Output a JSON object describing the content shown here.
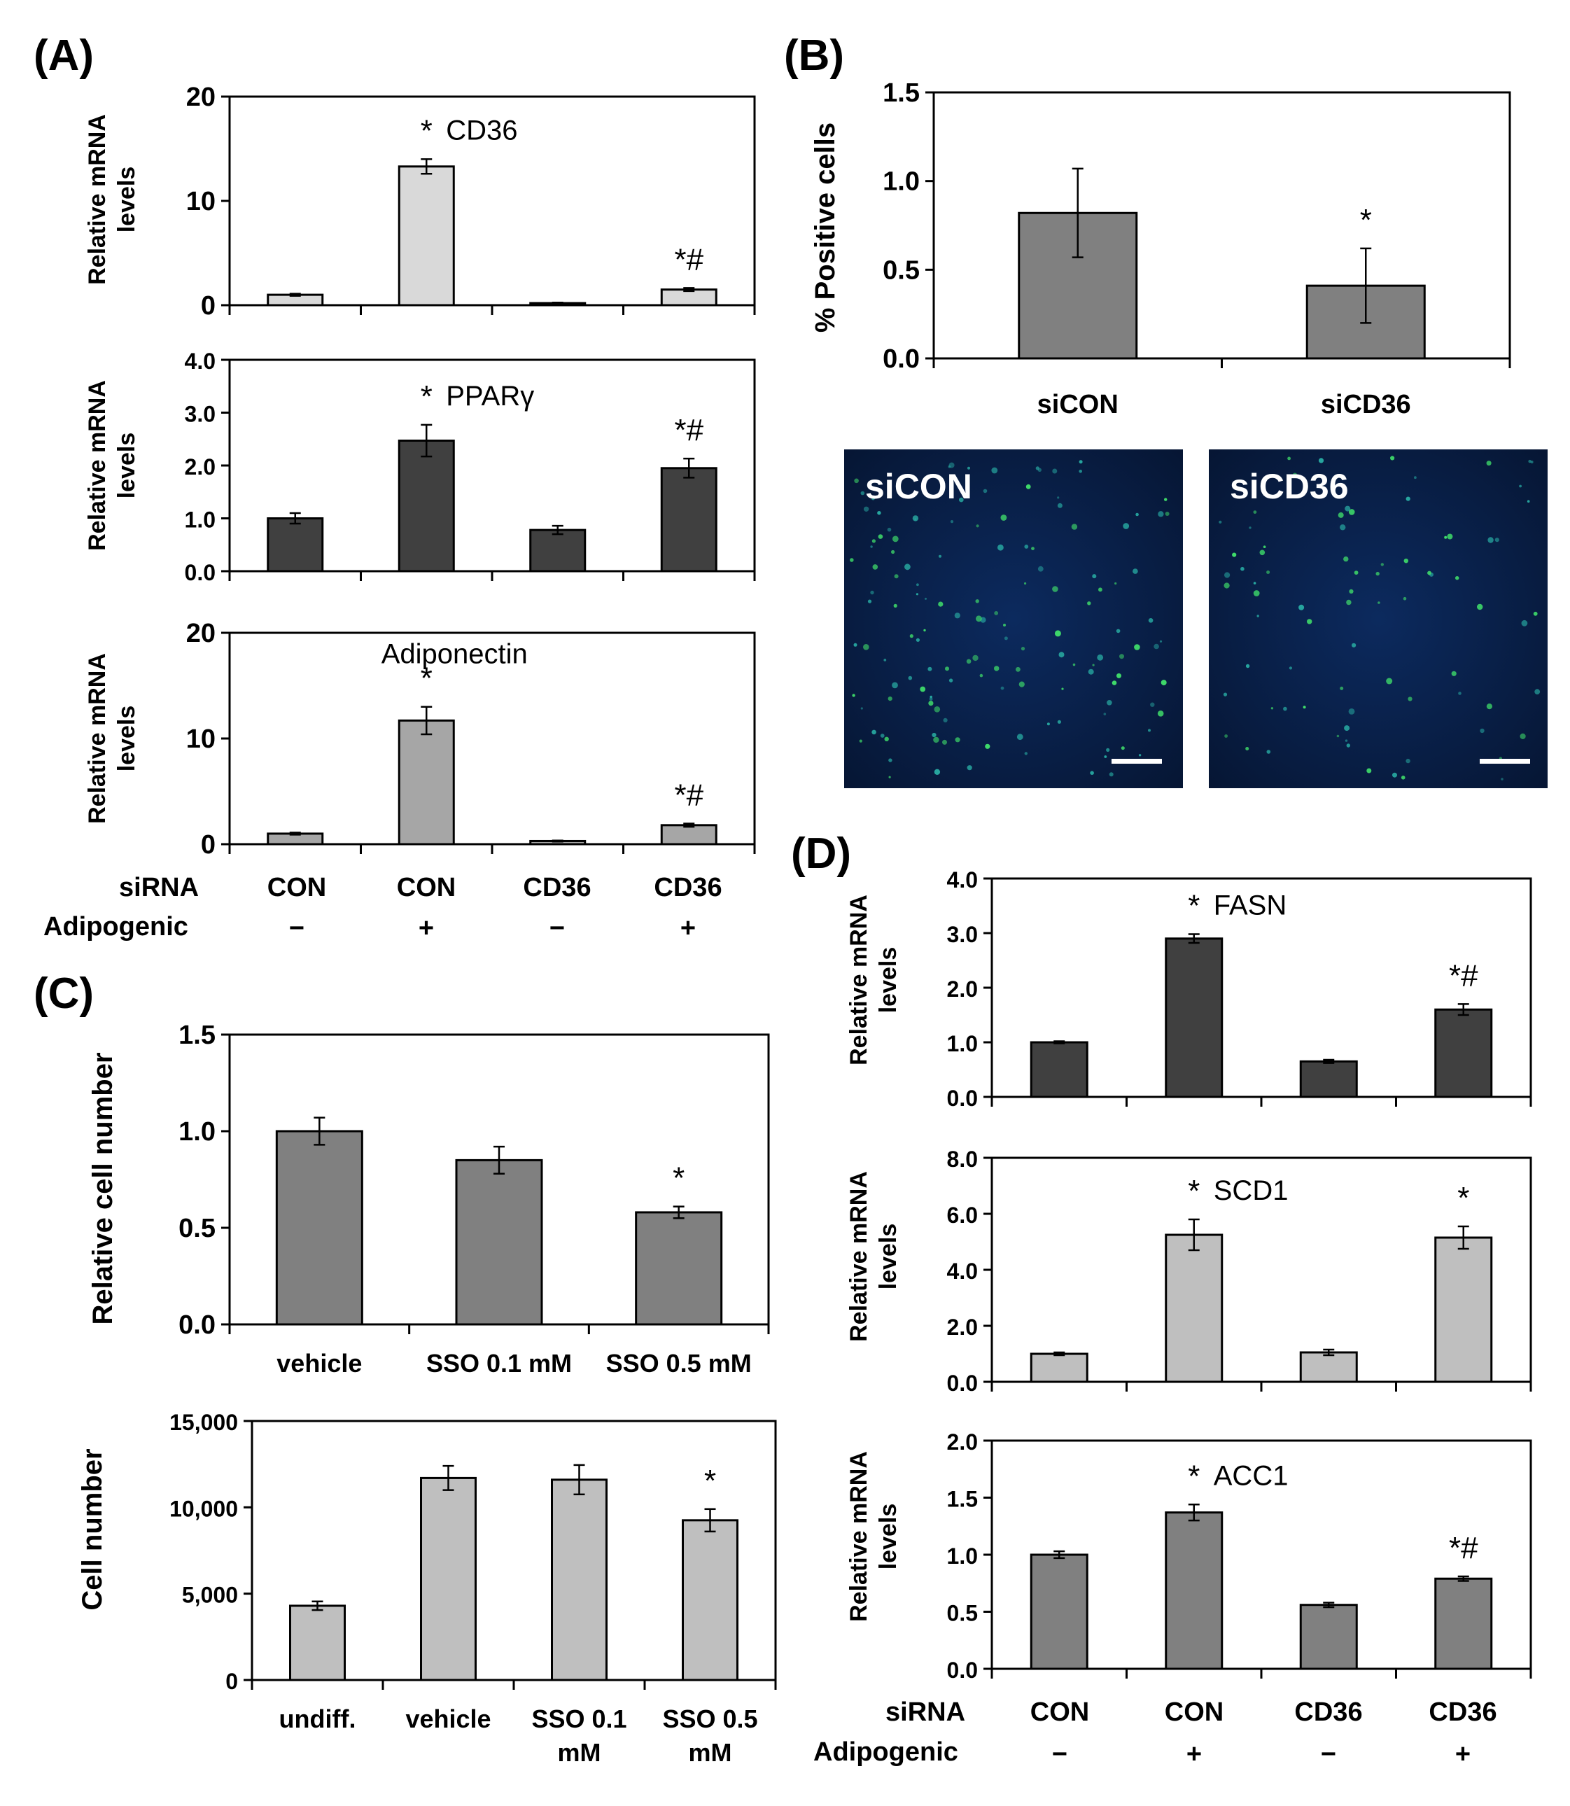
{
  "panels": {
    "A": "(A)",
    "B": "(B)",
    "C": "(C)",
    "D": "(D)"
  },
  "colors": {
    "dark": "#404040",
    "medium": "#808080",
    "light_gray": "#bfbfbf",
    "very_light": "#d9d9d9"
  },
  "shared_labels": {
    "ylabel_mrna_line1": "Relative mRNA",
    "ylabel_mrna_line2": "levels",
    "siRNA_row_label": "siRNA",
    "adipogenic_row_label": "Adipogenic",
    "siRNA_values": [
      "CON",
      "CON",
      "CD36",
      "CD36"
    ],
    "adipogenic_values": [
      "−",
      "+",
      "−",
      "+"
    ]
  },
  "microscopy": {
    "left_label": "siCON",
    "right_label": "siCD36"
  },
  "chart_data": [
    {
      "id": "A1",
      "type": "bar",
      "gene": "CD36",
      "categories": [
        "CON −",
        "CON +",
        "CD36 −",
        "CD36 +"
      ],
      "values": [
        1.0,
        13.3,
        0.2,
        1.5
      ],
      "errors": [
        0.1,
        0.7,
        0.05,
        0.15
      ],
      "marks": [
        "",
        "*",
        "",
        "*#"
      ],
      "ylim": [
        0,
        20
      ],
      "yticks": [
        "0",
        "10",
        "20"
      ],
      "color": "#d9d9d9"
    },
    {
      "id": "A2",
      "type": "bar",
      "gene": "PPARγ",
      "categories": [
        "CON −",
        "CON +",
        "CD36 −",
        "CD36 +"
      ],
      "values": [
        1.0,
        2.47,
        0.78,
        1.95
      ],
      "errors": [
        0.1,
        0.3,
        0.08,
        0.18
      ],
      "marks": [
        "",
        "*",
        "",
        "*#"
      ],
      "ylim": [
        0,
        4
      ],
      "yticks": [
        "0.0",
        "1.0",
        "2.0",
        "3.0",
        "4.0"
      ],
      "color": "#404040"
    },
    {
      "id": "A3",
      "type": "bar",
      "gene": "Adiponectin",
      "categories": [
        "CON −",
        "CON +",
        "CD36 −",
        "CD36 +"
      ],
      "values": [
        1.0,
        11.7,
        0.3,
        1.8
      ],
      "errors": [
        0.1,
        1.3,
        0.05,
        0.15
      ],
      "marks": [
        "",
        "*",
        "",
        "*#"
      ],
      "ylim": [
        0,
        20
      ],
      "yticks": [
        "0",
        "10",
        "20"
      ],
      "color": "#a6a6a6"
    },
    {
      "id": "B",
      "type": "bar",
      "categories": [
        "siCON",
        "siCD36"
      ],
      "values": [
        0.82,
        0.41
      ],
      "errors": [
        0.25,
        0.21
      ],
      "marks": [
        "",
        "*"
      ],
      "ylabel": "% Positive cells",
      "ylim": [
        0,
        1.5
      ],
      "yticks": [
        "0.0",
        "0.5",
        "1.0",
        "1.5"
      ],
      "color": "#808080"
    },
    {
      "id": "C1",
      "type": "bar",
      "categories": [
        "vehicle",
        "SSO 0.1 mM",
        "SSO 0.5 mM"
      ],
      "values": [
        1.0,
        0.85,
        0.58
      ],
      "errors": [
        0.07,
        0.07,
        0.03
      ],
      "marks": [
        "",
        "",
        "*"
      ],
      "ylabel": "Relative cell number",
      "ylim": [
        0,
        1.5
      ],
      "yticks": [
        "0.0",
        "0.5",
        "1.0",
        "1.5"
      ],
      "color": "#808080"
    },
    {
      "id": "C2",
      "type": "bar",
      "categories": [
        "undiff.",
        "vehicle",
        "SSO 0.1 mM",
        "SSO 0.5 mM"
      ],
      "values": [
        4300,
        11700,
        11600,
        9250
      ],
      "errors": [
        250,
        700,
        850,
        650
      ],
      "marks": [
        "",
        "",
        "",
        "*"
      ],
      "ylabel": "Cell number",
      "ylim": [
        0,
        15000
      ],
      "yticks": [
        "0",
        "5,000",
        "10,000",
        "15,000"
      ],
      "color": "#bfbfbf"
    },
    {
      "id": "D1",
      "type": "bar",
      "gene": "FASN",
      "categories": [
        "CON −",
        "CON +",
        "CD36 −",
        "CD36 +"
      ],
      "values": [
        1.0,
        2.9,
        0.65,
        1.6
      ],
      "errors": [
        0.02,
        0.08,
        0.03,
        0.1
      ],
      "marks": [
        "",
        "*",
        "",
        "*#"
      ],
      "ylim": [
        0,
        4
      ],
      "yticks": [
        "0.0",
        "1.0",
        "2.0",
        "3.0",
        "4.0"
      ],
      "color": "#404040"
    },
    {
      "id": "D2",
      "type": "bar",
      "gene": "SCD1",
      "categories": [
        "CON −",
        "CON +",
        "CD36 −",
        "CD36 +"
      ],
      "values": [
        1.0,
        5.25,
        1.05,
        5.15
      ],
      "errors": [
        0.05,
        0.55,
        0.1,
        0.4
      ],
      "marks": [
        "",
        "*",
        "",
        "*"
      ],
      "ylim": [
        0,
        8
      ],
      "yticks": [
        "0.0",
        "2.0",
        "4.0",
        "6.0",
        "8.0"
      ],
      "color": "#bfbfbf"
    },
    {
      "id": "D3",
      "type": "bar",
      "gene": "ACC1",
      "categories": [
        "CON −",
        "CON +",
        "CD36 −",
        "CD36 +"
      ],
      "values": [
        1.0,
        1.37,
        0.56,
        0.79
      ],
      "errors": [
        0.03,
        0.07,
        0.02,
        0.02
      ],
      "marks": [
        "",
        "*",
        "",
        "*#"
      ],
      "ylim": [
        0,
        2
      ],
      "yticks": [
        "0.0",
        "0.5",
        "1.0",
        "1.5",
        "2.0"
      ],
      "color": "#808080"
    }
  ]
}
